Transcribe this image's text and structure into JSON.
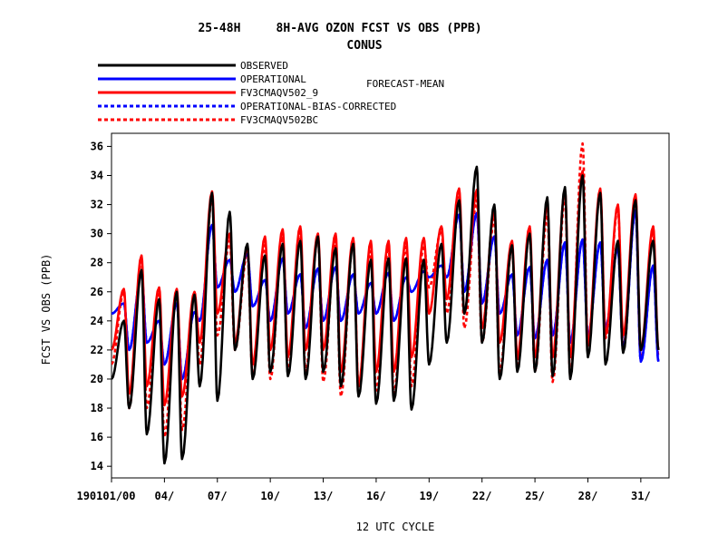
{
  "chart_data": {
    "type": "line",
    "title": "25-48H     8H-AVG OZON FCST VS OBS (PPB)",
    "subtitle": "CONUS",
    "legend_extra": "FORECAST-MEAN",
    "xlabel": "12 UTC CYCLE",
    "ylabel": "FCST VS OBS (PPB)",
    "ylim": [
      13.2,
      36.9
    ],
    "yticks": [
      14,
      16,
      18,
      20,
      22,
      24,
      26,
      28,
      30,
      32,
      34,
      36
    ],
    "xlim": [
      0,
      31.6
    ],
    "xticks": [
      {
        "pos": 0,
        "label": "190101/00"
      },
      {
        "pos": 3,
        "label": "04/"
      },
      {
        "pos": 6,
        "label": "07/"
      },
      {
        "pos": 9,
        "label": "10/"
      },
      {
        "pos": 12,
        "label": "13/"
      },
      {
        "pos": 15,
        "label": "16/"
      },
      {
        "pos": 18,
        "label": "19/"
      },
      {
        "pos": 21,
        "label": "22/"
      },
      {
        "pos": 24,
        "label": "25/"
      },
      {
        "pos": 27,
        "label": "28/"
      },
      {
        "pos": 30,
        "label": "31/"
      }
    ],
    "peak_fraction": 0.7,
    "series": [
      {
        "name": "OBSERVED",
        "color": "#000000",
        "style": "solid",
        "peaks": [
          24,
          27.5,
          25.5,
          26,
          25.8,
          32.8,
          31.5,
          29.3,
          28.5,
          29.3,
          29.5,
          29.8,
          29,
          29.3,
          28.2,
          28.3,
          28.3,
          28.2,
          29.3,
          32.3,
          34.6,
          32,
          29.2,
          30,
          32.5,
          33.2,
          34,
          32.8,
          29.5,
          32.3,
          29.5
        ],
        "troughs": [
          20,
          18,
          16.2,
          14.2,
          14.5,
          19.5,
          18.5,
          22,
          20,
          20.5,
          20.2,
          20,
          20.5,
          19.5,
          18.8,
          18.3,
          18.5,
          17.9,
          21,
          22.5,
          24.5,
          22.5,
          20,
          20.5,
          20.5,
          20.2,
          20,
          21.5,
          21,
          21.8,
          22
        ]
      },
      {
        "name": "OPERATIONAL",
        "color": "#0000ff",
        "style": "solid",
        "peaks": [
          25.2,
          27.3,
          24,
          25.2,
          24.6,
          30.6,
          28.2,
          28.6,
          26.8,
          28.3,
          27.2,
          27.6,
          27.7,
          27.2,
          26.6,
          27.3,
          27,
          27.4,
          27.8,
          31.3,
          31.4,
          29.8,
          27.2,
          27.7,
          28.2,
          29.4,
          29.6,
          29.4,
          29,
          31.6,
          27.8
        ],
        "troughs": [
          24.5,
          22,
          22.5,
          21,
          20,
          24,
          26.3,
          26,
          25,
          24,
          24.5,
          23.5,
          24,
          24,
          24.5,
          24.5,
          24,
          26,
          27,
          27,
          26,
          25.2,
          24.5,
          23,
          22.8,
          23,
          22.5,
          23,
          23.5,
          22,
          21.2
        ]
      },
      {
        "name": "FV3CMAQV502_9",
        "color": "#ff0000",
        "style": "solid",
        "peaks": [
          26.2,
          28.5,
          26.3,
          26.2,
          26,
          32.9,
          30,
          29.1,
          29.8,
          30.3,
          30.5,
          30,
          30,
          29.7,
          29.5,
          29.5,
          29.7,
          29.7,
          30.5,
          33.1,
          33,
          31.5,
          29.5,
          30.5,
          32,
          33,
          34.3,
          33.1,
          32,
          32.7,
          30.5
        ],
        "troughs": [
          22,
          19,
          19.5,
          18.2,
          18.8,
          22.5,
          24.5,
          22.5,
          21,
          22,
          21.5,
          22,
          22,
          20.5,
          19.5,
          20.5,
          20.5,
          21.5,
          24.5,
          25.5,
          24.5,
          23.5,
          22.5,
          21.5,
          21.5,
          21.5,
          21.5,
          22.5,
          23,
          23,
          22
        ]
      },
      {
        "name": "OPERATIONAL-BIAS-CORRECTED",
        "color": "#0000ff",
        "style": "dashed",
        "peaks": [
          25.2,
          27.3,
          24,
          25.2,
          24.6,
          30.6,
          28.2,
          28.6,
          26.8,
          28.3,
          27.2,
          27.6,
          27.7,
          27.2,
          26.6,
          27.3,
          27,
          27.4,
          27.8,
          31.3,
          31.4,
          29.8,
          27.2,
          27.7,
          28.2,
          29.4,
          29.6,
          29.4,
          29,
          31.6,
          27.8
        ],
        "troughs": [
          24.5,
          22,
          22.5,
          21,
          20,
          24,
          26.3,
          26,
          25,
          24,
          24.5,
          23.5,
          24,
          24,
          24.5,
          24.5,
          24,
          26,
          27,
          27,
          26,
          25.2,
          24.5,
          23,
          22.8,
          23,
          22.5,
          23,
          23.5,
          22,
          21.2
        ]
      },
      {
        "name": "FV3CMAQV502BC",
        "color": "#ff0000",
        "style": "dashed",
        "peaks": [
          26,
          28.3,
          26,
          26,
          25.8,
          32.5,
          29.5,
          28.7,
          29.2,
          29.8,
          30.1,
          29.8,
          29.5,
          29.4,
          28.8,
          29.1,
          29.1,
          29.2,
          30.2,
          32.5,
          32.3,
          31,
          29,
          30,
          31.3,
          32.5,
          36.2,
          32.8,
          31.8,
          32.3,
          30.2
        ],
        "troughs": [
          21,
          18,
          18,
          16,
          16.5,
          21,
          23,
          22,
          20.2,
          20,
          20.5,
          20.5,
          19.8,
          18.8,
          19.5,
          19.2,
          19,
          19.5,
          26.3,
          24.5,
          23.5,
          22.5,
          20.5,
          21,
          20.5,
          19.8,
          20.2,
          22.3,
          22.8,
          22.2,
          21.5
        ]
      }
    ]
  }
}
